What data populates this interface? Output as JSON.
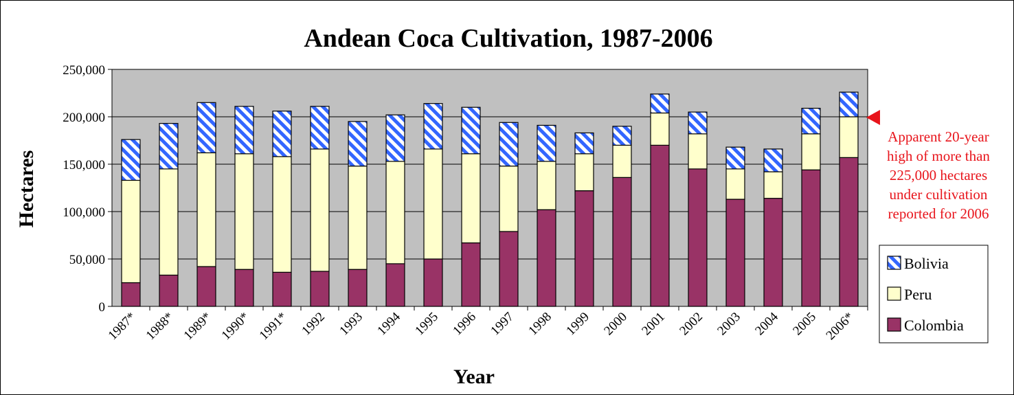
{
  "chart_data": {
    "type": "bar",
    "stacked": true,
    "title": "Andean Coca Cultivation, 1987-2006",
    "xlabel": "Year",
    "ylabel": "Hectares",
    "ylim": [
      0,
      250000
    ],
    "yticks": [
      "0",
      "50,000",
      "100,000",
      "150,000",
      "200,000",
      "250,000"
    ],
    "ytick_values": [
      0,
      50000,
      100000,
      150000,
      200000,
      250000
    ],
    "grid": true,
    "legend_position": "right",
    "categories": [
      "1987*",
      "1988*",
      "1989*",
      "1990*",
      "1991*",
      "1992",
      "1993",
      "1994",
      "1995",
      "1996",
      "1997",
      "1998",
      "1999",
      "2000",
      "2001",
      "2002",
      "2003",
      "2004",
      "2005",
      "2006*"
    ],
    "series": [
      {
        "name": "Colombia",
        "color": "#993366",
        "values": [
          25000,
          33000,
          42000,
          39000,
          36000,
          37000,
          39000,
          45000,
          50000,
          67000,
          79000,
          102000,
          122000,
          136000,
          170000,
          145000,
          113000,
          114000,
          144000,
          157000
        ]
      },
      {
        "name": "Peru",
        "color": "#ffffcc",
        "values": [
          108000,
          112000,
          120000,
          122000,
          122000,
          129000,
          109000,
          108000,
          116000,
          94000,
          69000,
          51000,
          39000,
          34000,
          34000,
          37000,
          32000,
          28000,
          38000,
          43000
        ]
      },
      {
        "name": "Bolivia",
        "color": "#3366ff",
        "pattern": "hatched",
        "values": [
          43000,
          48000,
          53000,
          50000,
          48000,
          45000,
          47000,
          49000,
          48000,
          49000,
          46000,
          38000,
          22000,
          20000,
          20000,
          23000,
          23000,
          24000,
          27000,
          26000
        ]
      }
    ],
    "annotation": {
      "lines": [
        "Apparent 20-year",
        "high of more than",
        "225,000 hectares",
        "under cultivation",
        "reported for 2006"
      ],
      "color": "#e8141b",
      "points_to": "2006*"
    },
    "colors": {
      "plot_background": "#c0c0c0",
      "grid": "#000000"
    }
  }
}
